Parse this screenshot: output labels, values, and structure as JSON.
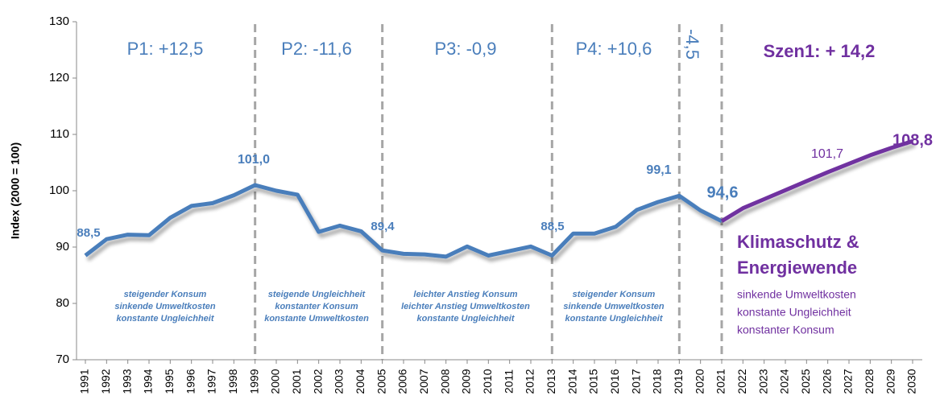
{
  "chart_data": {
    "type": "line",
    "y_label": "Index (2000 = 100)",
    "categories": [
      "1991",
      "1992",
      "1993",
      "1994",
      "1995",
      "1996",
      "1997",
      "1998",
      "1999",
      "2000",
      "2001",
      "2002",
      "2003",
      "2004",
      "2005",
      "2006",
      "2007",
      "2008",
      "2009",
      "2010",
      "2011",
      "2012",
      "2013",
      "2014",
      "2015",
      "2016",
      "2017",
      "2018",
      "2019",
      "2020",
      "2021",
      "2022",
      "2023",
      "2024",
      "2025",
      "2026",
      "2027",
      "2028",
      "2029",
      "2030"
    ],
    "series": [
      {
        "color": "#4a7ebb",
        "values": [
          88.5,
          91.4,
          92.2,
          92.1,
          95.2,
          97.3,
          97.8,
          99.2,
          101.0,
          100.0,
          99.3,
          92.7,
          93.8,
          92.8,
          89.4,
          88.8,
          88.7,
          88.3,
          90.1,
          88.5,
          89.3,
          90.1,
          88.5,
          92.4,
          92.4,
          93.6,
          96.6,
          98.0,
          99.1,
          96.5,
          94.6,
          null,
          null,
          null,
          null,
          null,
          null,
          null,
          null,
          null
        ],
        "value_labels": [
          "88,5",
          null,
          null,
          null,
          null,
          null,
          null,
          null,
          "101,0",
          null,
          null,
          null,
          null,
          null,
          "89,4",
          null,
          null,
          null,
          null,
          null,
          null,
          null,
          "88,5",
          null,
          null,
          null,
          null,
          null,
          "99,1",
          null,
          "94,6",
          null,
          null,
          null,
          null,
          null,
          null,
          null,
          null,
          null
        ]
      },
      {
        "color": "#7030a0",
        "values": [
          null,
          null,
          null,
          null,
          null,
          null,
          null,
          null,
          null,
          null,
          null,
          null,
          null,
          null,
          null,
          null,
          null,
          null,
          null,
          null,
          null,
          null,
          null,
          null,
          null,
          null,
          null,
          null,
          null,
          null,
          94.6,
          96.9,
          98.5,
          100.1,
          101.7,
          103.3,
          104.8,
          106.3,
          107.6,
          108.8
        ],
        "value_labels": [
          null,
          null,
          null,
          null,
          null,
          null,
          null,
          null,
          null,
          null,
          null,
          null,
          null,
          null,
          null,
          null,
          null,
          null,
          null,
          null,
          null,
          null,
          null,
          null,
          null,
          null,
          null,
          null,
          null,
          null,
          null,
          null,
          null,
          null,
          "101,7",
          null,
          null,
          null,
          null,
          "108,8"
        ]
      }
    ],
    "ylim": [
      70,
      130
    ],
    "yticks": [
      70,
      80,
      90,
      100,
      110,
      120,
      130
    ],
    "grid": false,
    "period_labels": [
      "P1: +12,5",
      "P2: -11,6",
      "P3: -0,9",
      "P4: +10,6",
      "-4,5",
      "Szen1: + 14,2"
    ],
    "period_notes": [
      [
        "steigender Konsum",
        "sinkende Umweltkosten",
        "konstante Ungleichheit"
      ],
      [
        "steigende Ungleichheit",
        "konstanter Konsum",
        "konstante Umweltkosten"
      ],
      [
        "leichter Anstieg Konsum",
        "leichter Anstieg Umweltkosten",
        "konstante Ungleichheit"
      ],
      [
        "steigender Konsum",
        "sinkende Umweltkosten",
        "konstante Ungleichheit"
      ]
    ],
    "scenario_title": [
      "Klimaschutz &",
      "Energiewende"
    ],
    "scenario_notes": [
      "sinkende Umweltkosten",
      "konstante Ungleichheit",
      "konstanter Konsum"
    ]
  }
}
